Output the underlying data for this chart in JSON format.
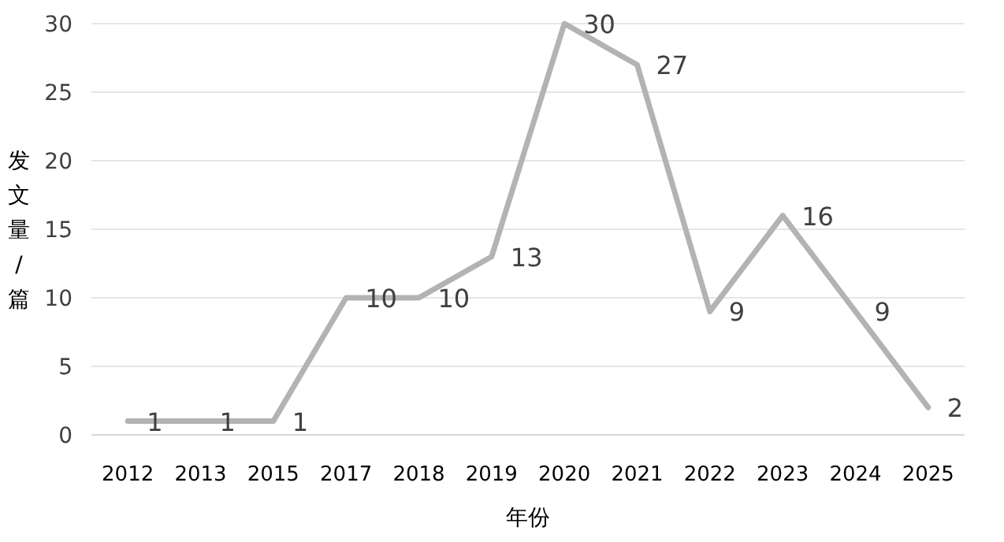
{
  "chart_data": {
    "type": "line",
    "xlabel": "年份",
    "ylabel": "发文量/篇",
    "categories": [
      "2012",
      "2013",
      "2015",
      "2017",
      "2018",
      "2019",
      "2020",
      "2021",
      "2022",
      "2023",
      "2024",
      "2025"
    ],
    "series": [
      {
        "color": "#b3b3b3",
        "values": [
          1,
          1,
          1,
          10,
          10,
          13,
          30,
          27,
          9,
          16,
          9,
          2
        ]
      }
    ],
    "ylim": [
      0,
      30
    ],
    "yticks": [
      0,
      5,
      10,
      15,
      20,
      25,
      30
    ],
    "grid": "y",
    "data_labels": true,
    "marker": "none",
    "line_style": "solid"
  }
}
